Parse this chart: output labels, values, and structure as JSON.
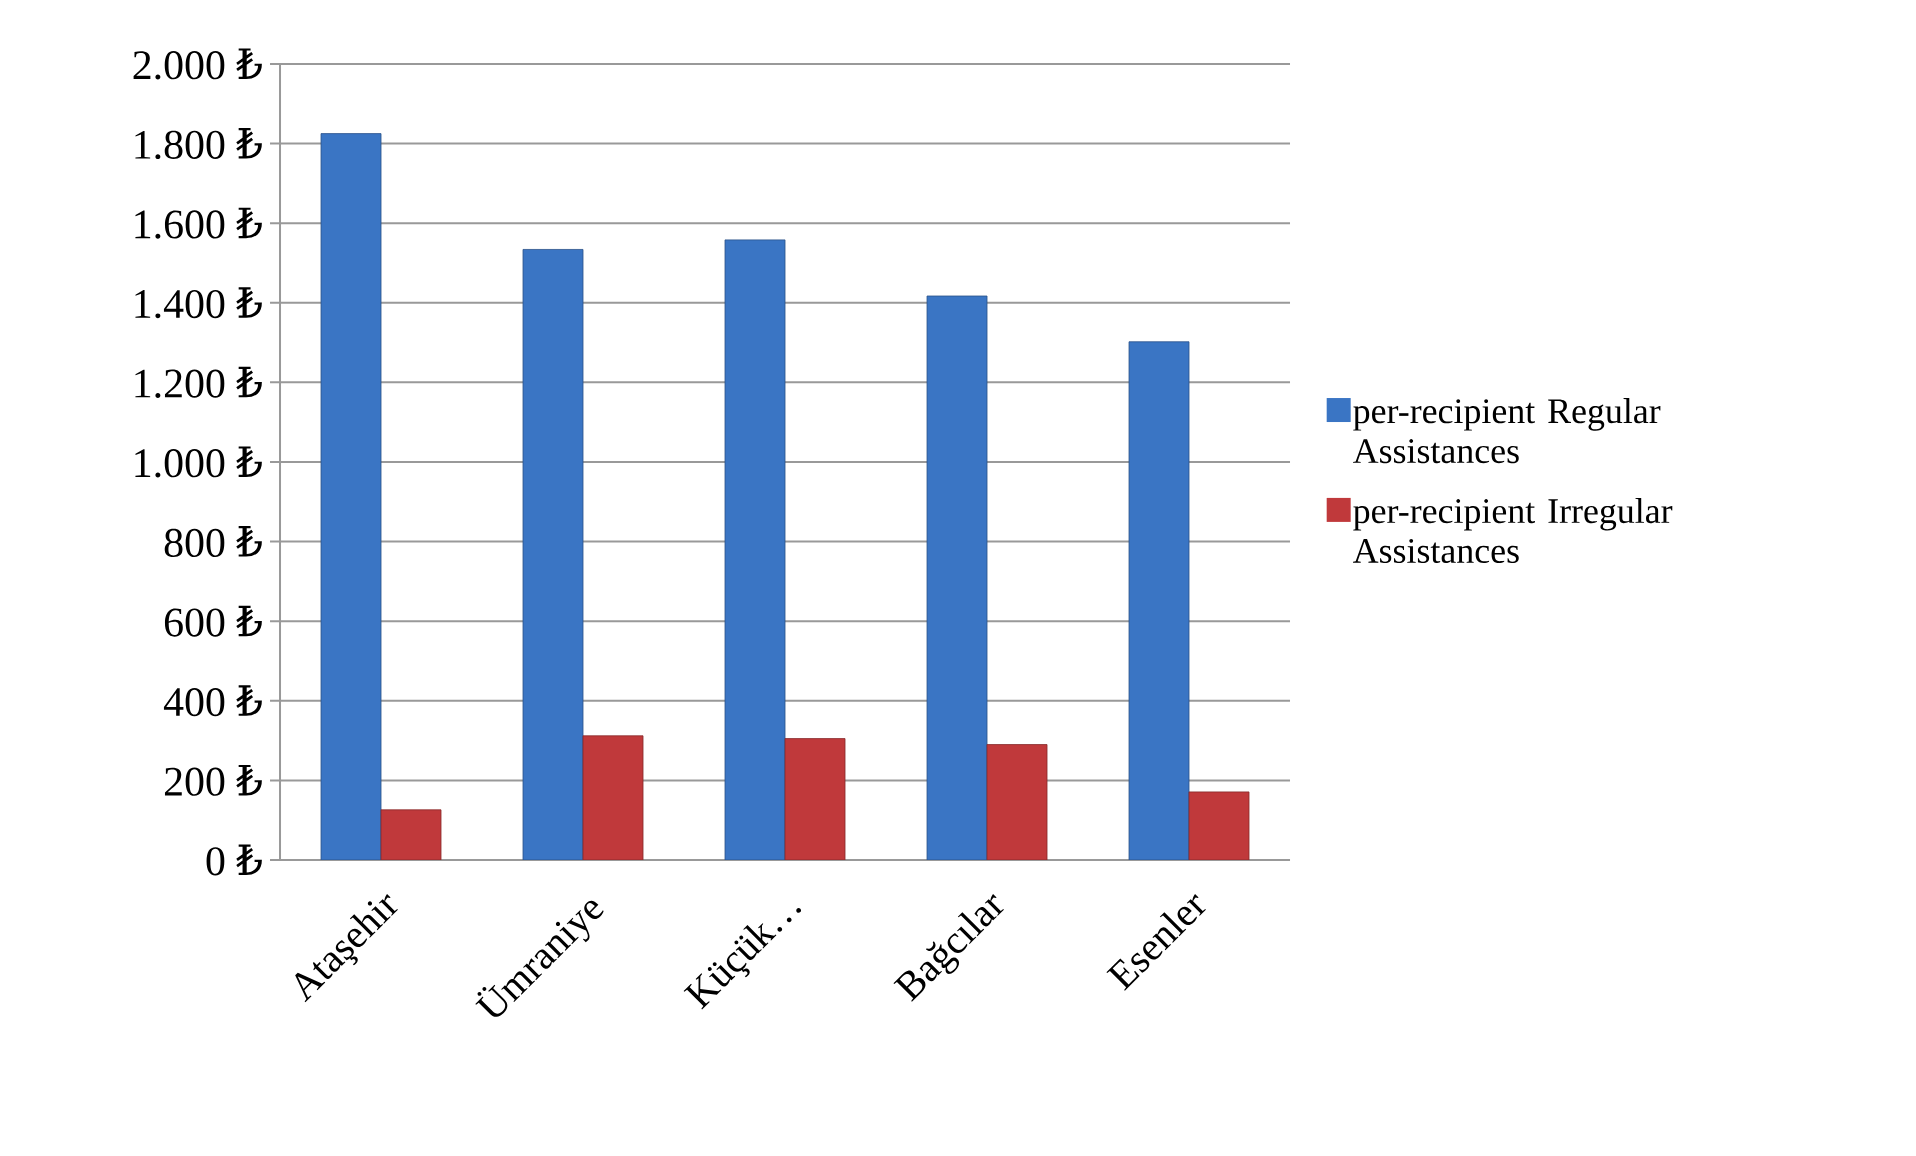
{
  "chart_data": {
    "type": "bar",
    "categories": [
      "Ataşehir",
      "Ümraniye",
      "Küçük…",
      "Bağcılar",
      "Esenler"
    ],
    "series": [
      {
        "name": "per-recipient Regular Assistances",
        "color": "#3a75c4",
        "values": [
          1825,
          1534,
          1558,
          1417,
          1302
        ]
      },
      {
        "name": "per-recipient Irregular Assistances",
        "color": "#c0393b",
        "values": [
          126,
          312,
          305,
          290,
          171
        ]
      }
    ],
    "ylim": [
      0,
      2000
    ],
    "yticks": [
      {
        "value": 0,
        "label": "0 ₺"
      },
      {
        "value": 200,
        "label": "200 ₺"
      },
      {
        "value": 400,
        "label": "400 ₺"
      },
      {
        "value": 600,
        "label": "600 ₺"
      },
      {
        "value": 800,
        "label": "800 ₺"
      },
      {
        "value": 1000,
        "label": "1.000 ₺"
      },
      {
        "value": 1200,
        "label": "1.200 ₺"
      },
      {
        "value": 1400,
        "label": "1.400 ₺"
      },
      {
        "value": 1600,
        "label": "1.600 ₺"
      },
      {
        "value": 1800,
        "label": "1.800 ₺"
      },
      {
        "value": 2000,
        "label": "2.000 ₺"
      }
    ],
    "grid": "y",
    "legend": "right"
  }
}
